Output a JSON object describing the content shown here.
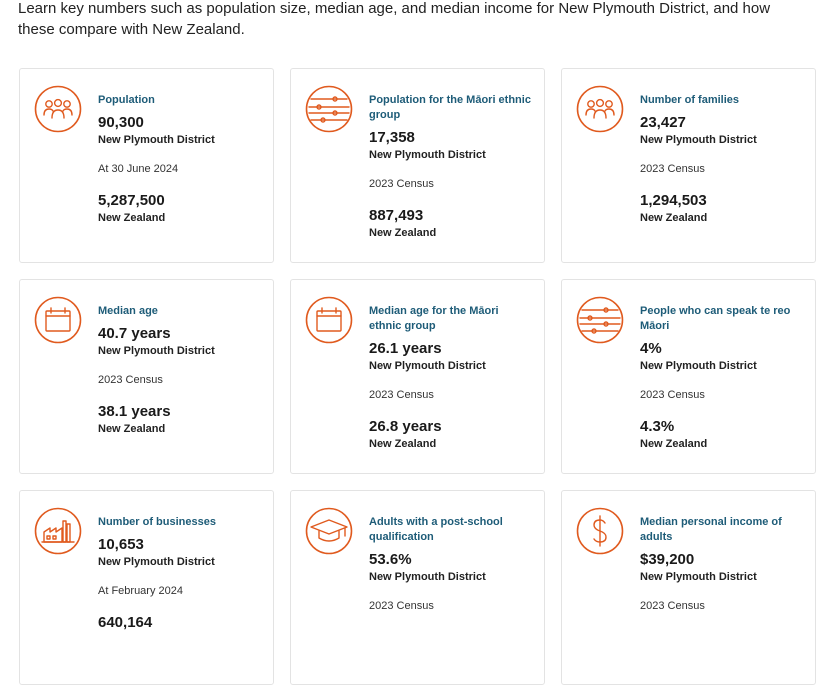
{
  "intro": "Learn key numbers such as population size, median age, and median income for New Plymouth District, and how these compare with New Zealand.",
  "accent_color": "#e05a1e",
  "label_color": "#1e5c78",
  "cards": [
    {
      "icon": "people-icon",
      "label": "Population",
      "value": "90,300",
      "place": "New Plymouth District",
      "note": "At 30 June 2024",
      "value2": "5,287,500",
      "place2": "New Zealand"
    },
    {
      "icon": "ethnic-group-icon",
      "label": "Population for the Māori ethnic group",
      "value": "17,358",
      "place": "New Plymouth District",
      "note": "2023 Census",
      "value2": "887,493",
      "place2": "New Zealand"
    },
    {
      "icon": "people-icon",
      "label": "Number of families",
      "value": "23,427",
      "place": "New Plymouth District",
      "note": "2023 Census",
      "value2": "1,294,503",
      "place2": "New Zealand"
    },
    {
      "icon": "calendar-icon",
      "label": "Median age",
      "value": "40.7 years",
      "place": "New Plymouth District",
      "note": "2023 Census",
      "value2": "38.1 years",
      "place2": "New Zealand"
    },
    {
      "icon": "calendar-icon",
      "label": "Median age for the Māori ethnic group",
      "value": "26.1 years",
      "place": "New Plymouth District",
      "note": "2023 Census",
      "value2": "26.8 years",
      "place2": "New Zealand"
    },
    {
      "icon": "ethnic-group-icon",
      "label": "People who can speak te reo Māori",
      "value": "4%",
      "place": "New Plymouth District",
      "note": "2023 Census",
      "value2": "4.3%",
      "place2": "New Zealand"
    },
    {
      "icon": "factory-icon",
      "label": "Number of businesses",
      "value": "10,653",
      "place": "New Plymouth District",
      "note": "At February 2024",
      "value2": "640,164",
      "place2": ""
    },
    {
      "icon": "graduation-cap-icon",
      "label": "Adults with a post-school qualification",
      "value": "53.6%",
      "place": "New Plymouth District",
      "note": "2023 Census",
      "value2": "",
      "place2": ""
    },
    {
      "icon": "dollar-icon",
      "label": "Median personal income of adults",
      "value": "$39,200",
      "place": "New Plymouth District",
      "note": "2023 Census",
      "value2": "",
      "place2": ""
    }
  ]
}
